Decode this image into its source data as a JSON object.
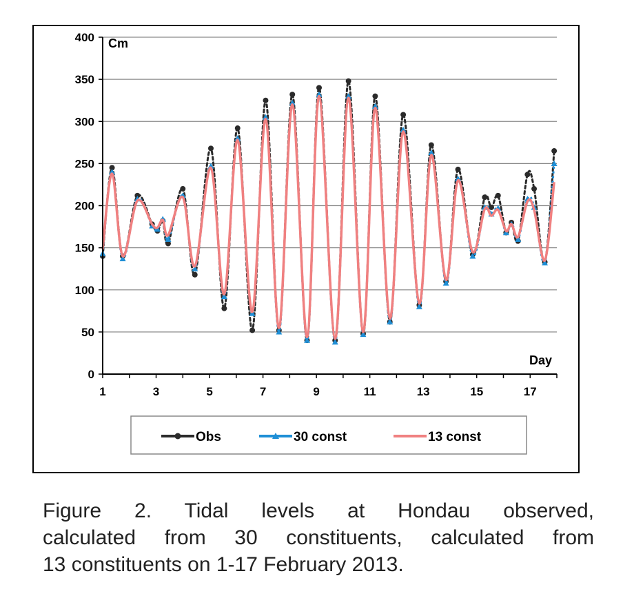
{
  "chart_data": {
    "type": "line",
    "xlabel": "Day",
    "ylabel": "Cm",
    "xlim": [
      1,
      18
    ],
    "ylim": [
      0,
      400
    ],
    "x_ticks": [
      "1",
      "3",
      "5",
      "7",
      "9",
      "11",
      "13",
      "15",
      "17"
    ],
    "y_ticks": [
      "0",
      "50",
      "100",
      "150",
      "200",
      "250",
      "300",
      "350",
      "400"
    ],
    "grid": "horizontal",
    "legend_position": "bottom",
    "series": [
      {
        "name": "Obs",
        "color": "#2b2b2b",
        "marker": "circle",
        "x": [
          1.0,
          1.35,
          1.75,
          2.3,
          2.85,
          3.05,
          3.25,
          3.45,
          4.0,
          4.45,
          5.05,
          5.55,
          6.05,
          6.6,
          7.1,
          7.6,
          8.1,
          8.65,
          9.1,
          9.7,
          10.2,
          10.75,
          11.2,
          11.75,
          12.25,
          12.85,
          13.3,
          13.85,
          14.3,
          14.85,
          15.3,
          15.55,
          15.8,
          16.1,
          16.3,
          16.55,
          16.9,
          17.15,
          17.55,
          17.9
        ],
        "y": [
          140,
          245,
          140,
          212,
          178,
          170,
          182,
          155,
          220,
          118,
          268,
          78,
          292,
          52,
          325,
          52,
          332,
          40,
          340,
          40,
          348,
          48,
          330,
          62,
          308,
          82,
          272,
          110,
          243,
          142,
          210,
          198,
          212,
          168,
          180,
          158,
          237,
          220,
          133,
          265
        ]
      },
      {
        "name": "30 const",
        "color": "#1f8fd6",
        "marker": "triangle",
        "x": [
          1.0,
          1.35,
          1.75,
          2.3,
          2.85,
          3.05,
          3.25,
          3.45,
          4.0,
          4.45,
          5.05,
          5.55,
          6.05,
          6.6,
          7.1,
          7.6,
          8.1,
          8.65,
          9.1,
          9.7,
          10.2,
          10.75,
          11.2,
          11.75,
          12.25,
          12.85,
          13.3,
          13.85,
          14.3,
          14.85,
          15.3,
          15.55,
          15.8,
          16.1,
          16.3,
          16.55,
          16.9,
          17.15,
          17.55,
          17.9
        ],
        "y": [
          143,
          240,
          137,
          208,
          176,
          172,
          184,
          160,
          212,
          125,
          247,
          92,
          280,
          72,
          305,
          50,
          322,
          40,
          332,
          38,
          330,
          47,
          318,
          62,
          290,
          80,
          263,
          108,
          232,
          140,
          198,
          190,
          197,
          168,
          178,
          160,
          208,
          198,
          132,
          250
        ]
      },
      {
        "name": "13 const",
        "color": "#f08080",
        "marker": "none",
        "x": [
          1.0,
          1.35,
          1.75,
          2.3,
          2.85,
          3.05,
          3.25,
          3.45,
          4.0,
          4.45,
          5.05,
          5.55,
          6.05,
          6.6,
          7.1,
          7.6,
          8.1,
          8.65,
          9.1,
          9.7,
          10.2,
          10.75,
          11.2,
          11.75,
          12.25,
          12.85,
          13.3,
          13.85,
          14.3,
          14.85,
          15.3,
          15.55,
          15.8,
          16.1,
          16.3,
          16.55,
          16.9,
          17.15,
          17.55,
          17.9
        ],
        "y": [
          148,
          238,
          140,
          206,
          178,
          174,
          183,
          165,
          210,
          128,
          245,
          95,
          278,
          74,
          303,
          55,
          320,
          44,
          330,
          42,
          328,
          50,
          316,
          66,
          288,
          84,
          260,
          112,
          230,
          145,
          196,
          188,
          195,
          170,
          178,
          163,
          205,
          195,
          135,
          228
        ]
      }
    ]
  },
  "caption": {
    "line1": "Figure 2. Tidal levels at Hondau observed,",
    "line2": "calculated from 30 constituents, calculated from",
    "line3": "13 constituents on 1-17 February 2013."
  }
}
